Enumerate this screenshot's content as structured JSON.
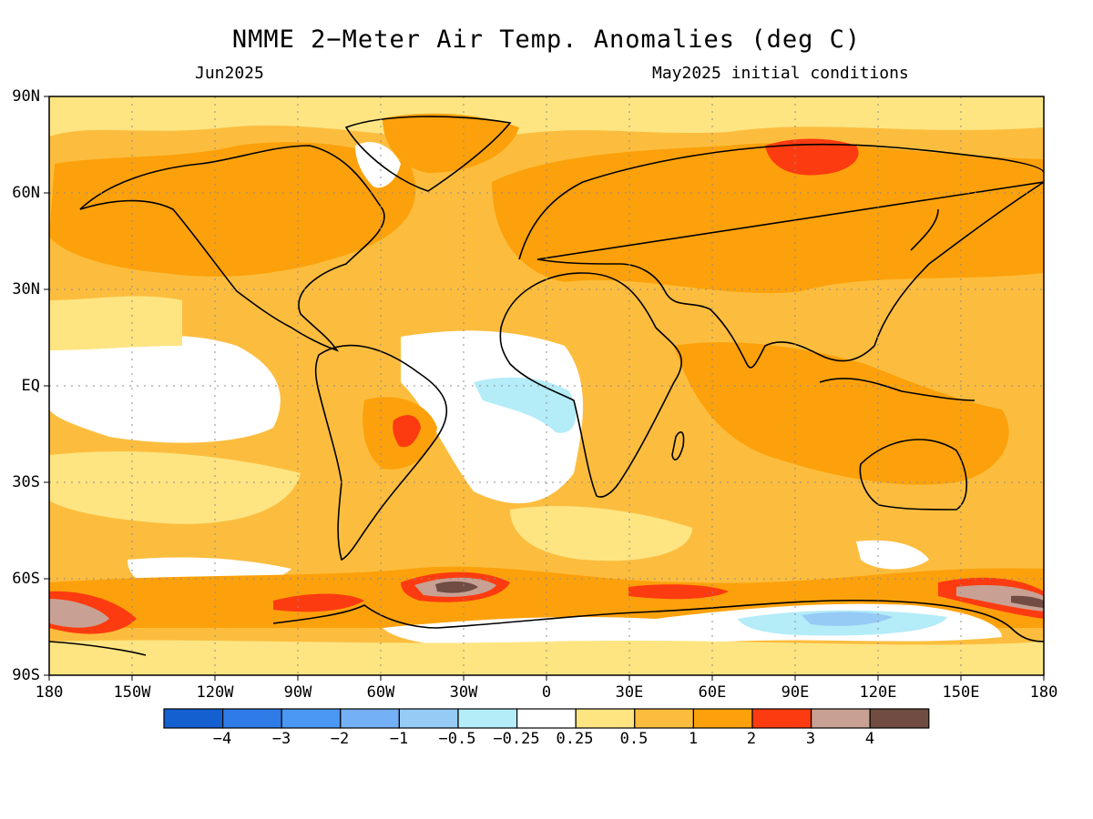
{
  "header": {
    "title": "NMME 2−Meter Air Temp. Anomalies (deg C)",
    "valid_month": "Jun2025",
    "init_conditions": "May2025 initial conditions"
  },
  "axes": {
    "lat_labels": [
      "90N",
      "60N",
      "30N",
      "EQ",
      "30S",
      "60S",
      "90S"
    ],
    "lon_labels": [
      "180",
      "150W",
      "120W",
      "90W",
      "60W",
      "30W",
      "0",
      "30E",
      "60E",
      "90E",
      "120E",
      "150E",
      "180"
    ]
  },
  "colorbar": {
    "tick_labels": [
      "−4",
      "−3",
      "−2",
      "−1",
      "−0.5",
      "−0.25",
      "0.25",
      "0.5",
      "1",
      "2",
      "3",
      "4"
    ],
    "colors": [
      "#1560d1",
      "#2f7be8",
      "#4a98f3",
      "#74b0f6",
      "#96cbf6",
      "#b4ecf8",
      "#ffffff",
      "#fee582",
      "#fcbd3e",
      "#fca10b",
      "#fd3b10",
      "#c8a194",
      "#704c43"
    ]
  }
}
